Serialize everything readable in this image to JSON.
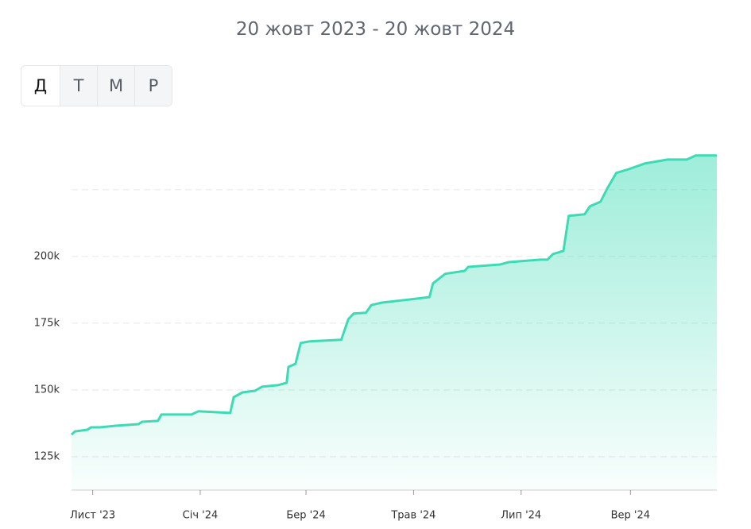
{
  "buttons": [
    "Д",
    "Т",
    "М",
    "Р"
  ],
  "chart_data": {
    "type": "area",
    "title": "20 жовт 2023 - 20 жовт 2024",
    "x": [
      0,
      2,
      9,
      11,
      16,
      25,
      38,
      40,
      49,
      51,
      68,
      72,
      90,
      92,
      97,
      104,
      108,
      117,
      122,
      123,
      127,
      130,
      135,
      153,
      157,
      160,
      167,
      170,
      176,
      192,
      203,
      205,
      212,
      223,
      225,
      243,
      248,
      266,
      270,
      273,
      279,
      282,
      291,
      294,
      300,
      304,
      309,
      316,
      325,
      338,
      349,
      354,
      366
    ],
    "values": [
      133300,
      134500,
      135100,
      136000,
      136000,
      136600,
      137200,
      138100,
      138400,
      140800,
      140800,
      142000,
      141400,
      147300,
      149100,
      149700,
      151200,
      151800,
      152700,
      158600,
      159800,
      167600,
      168200,
      168800,
      176500,
      178600,
      178900,
      181800,
      182700,
      183900,
      184800,
      189900,
      193500,
      194600,
      196100,
      197000,
      197900,
      198800,
      198800,
      200900,
      202100,
      215200,
      215800,
      218800,
      220500,
      225600,
      231300,
      232700,
      234800,
      236300,
      236300,
      237800,
      237800
    ],
    "color": "#3ddbb5",
    "xlim": [
      0,
      366
    ],
    "xticks": [
      {
        "value": 12,
        "label": "Лист '23"
      },
      {
        "value": 73,
        "label": "Січ '24"
      },
      {
        "value": 133,
        "label": "Бер '24"
      },
      {
        "value": 194,
        "label": "Трав '24"
      },
      {
        "value": 255,
        "label": "Лип '24"
      },
      {
        "value": 317,
        "label": "Вер '24"
      }
    ],
    "ylim": [
      112500,
      244000
    ],
    "yticks": [
      {
        "value": 125000,
        "label": "125k"
      },
      {
        "value": 150000,
        "label": "150k"
      },
      {
        "value": 175000,
        "label": "175k"
      },
      {
        "value": 200000,
        "label": "200k"
      },
      {
        "value": 225000,
        "label": null
      }
    ],
    "grid": true
  }
}
